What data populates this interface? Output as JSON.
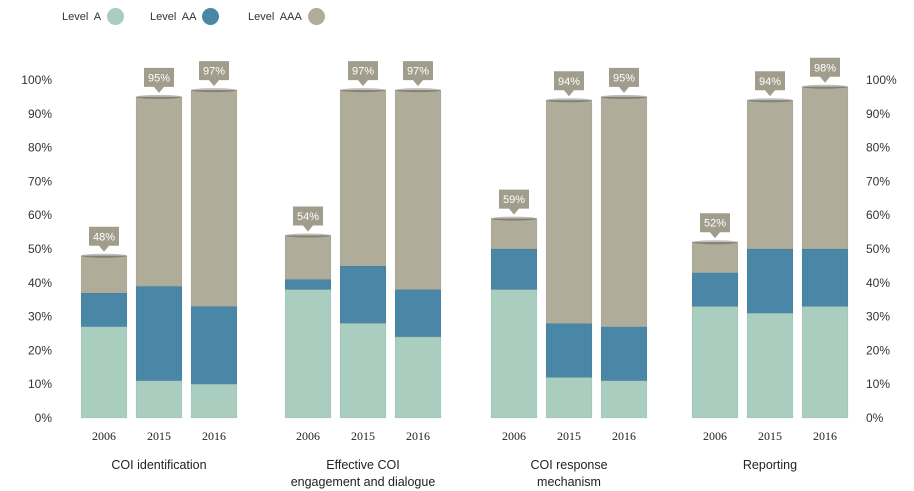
{
  "colors": {
    "level_a": "#a9cdbf",
    "level_aa": "#4a87a6",
    "level_aaa": "#b0ac9a",
    "callout": "#a09d8c"
  },
  "legend": [
    {
      "label": "Level  A",
      "color": "#a9cdbf"
    },
    {
      "label": "Level  AA",
      "color": "#4a87a6"
    },
    {
      "label": "Level  AAA",
      "color": "#b0ac9a"
    }
  ],
  "chart_data": {
    "type": "bar",
    "stacked": true,
    "ylim": [
      0,
      100
    ],
    "yticks": [
      "0%",
      "10%",
      "20%",
      "30%",
      "40%",
      "50%",
      "60%",
      "70%",
      "80%",
      "90%",
      "100%"
    ],
    "y_axis_both_sides": true,
    "legend_position": "top-left",
    "groups": [
      {
        "label": "COI identification",
        "years": [
          "2006",
          "2015",
          "2016"
        ]
      },
      {
        "label": "Effective COI\nengagement and dialogue",
        "years": [
          "2006",
          "2015",
          "2016"
        ]
      },
      {
        "label": "COI response\nmechanism",
        "years": [
          "2006",
          "2015",
          "2016"
        ]
      },
      {
        "label": "Reporting",
        "years": [
          "2006",
          "2015",
          "2016"
        ]
      }
    ],
    "series": [
      {
        "name": "Level  A",
        "values": [
          [
            27,
            11,
            10
          ],
          [
            38,
            28,
            24
          ],
          [
            38,
            12,
            11
          ],
          [
            33,
            31,
            33
          ]
        ]
      },
      {
        "name": "Level  AA",
        "values": [
          [
            10,
            28,
            23
          ],
          [
            3,
            17,
            14
          ],
          [
            12,
            16,
            16
          ],
          [
            10,
            19,
            17
          ]
        ]
      },
      {
        "name": "Level  AAA",
        "values": [
          [
            11,
            56,
            64
          ],
          [
            13,
            52,
            59
          ],
          [
            9,
            66,
            68
          ],
          [
            9,
            44,
            48
          ]
        ]
      }
    ],
    "totals": [
      [
        48,
        95,
        97
      ],
      [
        54,
        97,
        97
      ],
      [
        59,
        94,
        95
      ],
      [
        52,
        94,
        98
      ]
    ],
    "total_labels": [
      [
        "48%",
        "95%",
        "97%"
      ],
      [
        "54%",
        "97%",
        "97%"
      ],
      [
        "59%",
        "94%",
        "95%"
      ],
      [
        "52%",
        "94%",
        "98%"
      ]
    ]
  }
}
